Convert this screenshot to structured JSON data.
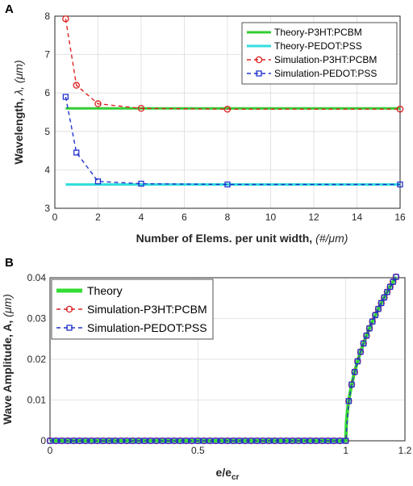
{
  "chart_data": [
    {
      "panel": "A",
      "type": "line",
      "xlabel": "Number of Elems. per unit width,",
      "xlabel_unit": "(#/μm)",
      "ylabel": "Wavelength,",
      "ylabel_unit": "λ, (μm)",
      "xlim": [
        0,
        16
      ],
      "ylim": [
        3,
        8
      ],
      "xticks": [
        "0",
        "2",
        "4",
        "6",
        "8",
        "10",
        "12",
        "14",
        "16"
      ],
      "yticks": [
        "3",
        "4",
        "5",
        "6",
        "7",
        "8"
      ],
      "grid": true,
      "legend": "top-right",
      "series": [
        {
          "name": "Theory-P3HT:PCBM",
          "style": "solid",
          "color": "#33cc33",
          "x": [
            0.5,
            16
          ],
          "y": [
            5.6,
            5.6
          ]
        },
        {
          "name": "Theory-PEDOT:PSS",
          "style": "solid",
          "color": "#33dddd",
          "x": [
            0.5,
            16
          ],
          "y": [
            3.62,
            3.62
          ]
        },
        {
          "name": "Simulation-P3HT:PCBM",
          "style": "dashed",
          "marker": "circle",
          "color": "#dd2222",
          "x": [
            0.5,
            1,
            2,
            4,
            8,
            16
          ],
          "y": [
            7.93,
            6.2,
            5.72,
            5.6,
            5.58,
            5.58
          ]
        },
        {
          "name": "Simulation-PEDOT:PSS",
          "style": "dashed",
          "marker": "square",
          "color": "#2233cc",
          "x": [
            0.5,
            1,
            2,
            4,
            8,
            16
          ],
          "y": [
            5.9,
            4.45,
            3.7,
            3.64,
            3.62,
            3.62
          ]
        }
      ]
    },
    {
      "panel": "B",
      "type": "line",
      "xlabel": "e/e",
      "xlabel_sub": "cr",
      "ylabel": "Wave Amplitude, A,",
      "ylabel_unit": "(μm)",
      "xlim": [
        0,
        1.2
      ],
      "ylim": [
        0,
        0.04
      ],
      "xticks": [
        "0",
        "0.5",
        "1",
        "1.2"
      ],
      "yticks": [
        "0",
        "0.01",
        "0.02",
        "0.03",
        "0.04"
      ],
      "grid": true,
      "legend": "top-left",
      "series": [
        {
          "name": "Theory",
          "style": "solid",
          "color": "#33dd33"
        },
        {
          "name": "Simulation-P3HT:PCBM",
          "style": "dashed",
          "marker": "circle",
          "color": "#dd2222"
        },
        {
          "name": "Simulation-PEDOT:PSS",
          "style": "dashed",
          "marker": "square",
          "color": "#2233cc"
        }
      ],
      "amplitude_curve": {
        "threshold": 1.0,
        "x_end": 1.17,
        "y_end": 0.0402,
        "marker_step_before": 0.02,
        "marker_step_after": 0.01
      }
    }
  ]
}
